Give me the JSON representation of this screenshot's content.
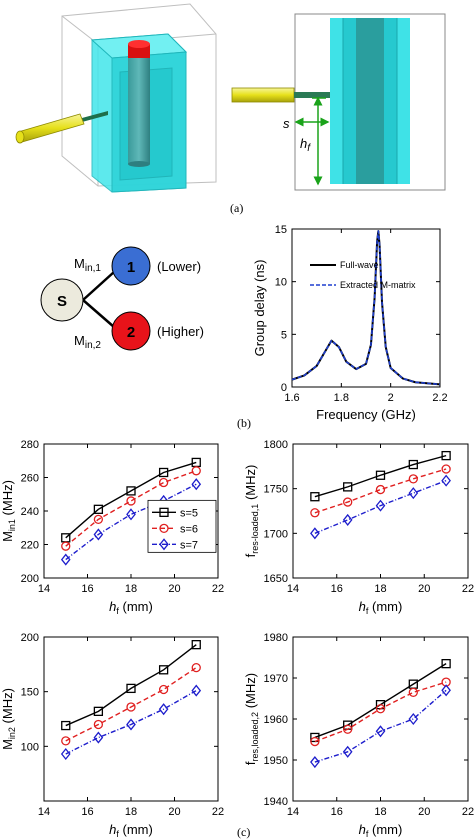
{
  "captions": {
    "a": "(a)",
    "b": "(b)",
    "c": "(c)"
  },
  "dims": {
    "s": "s",
    "hf": "h",
    "hf_sub": "f"
  },
  "diagram": {
    "source": "S",
    "node1": "1",
    "node2": "2",
    "m1_main": "M",
    "m1_sub": "in,1",
    "m2_main": "M",
    "m2_sub": "in,2",
    "lower": "(Lower)",
    "higher": "(Higher)",
    "colors": {
      "source": "#eceadd",
      "node1": "#3a6ed3",
      "node2": "#e8131a"
    }
  },
  "colors": {
    "cyan": "#33e0e6",
    "teal": "#2a8a8a",
    "red": "#e01010",
    "yellow": "#e8e812",
    "s5": "#000000",
    "s6": "#e02020",
    "s7": "#1e1ecc",
    "extracted": "#1f3fcf"
  },
  "chart_data": [
    {
      "type": "line",
      "xlabel": "Frequency (GHz)",
      "ylabel": "Group delay (ns)",
      "xlim": [
        1.6,
        2.2
      ],
      "ylim": [
        0,
        15
      ],
      "xticks": [
        "1.6",
        "1.8",
        "2",
        "2.2"
      ],
      "yticks": [
        "0",
        "5",
        "10",
        "15"
      ],
      "legend_position": "right",
      "series": [
        {
          "name": "Full-wave",
          "x": [
            1.6,
            1.65,
            1.7,
            1.73,
            1.76,
            1.79,
            1.82,
            1.86,
            1.9,
            1.92,
            1.935,
            1.945,
            1.95,
            1.955,
            1.965,
            1.98,
            2.0,
            2.05,
            2.1,
            2.2
          ],
          "y": [
            0.7,
            1.1,
            2.0,
            3.2,
            4.4,
            3.8,
            2.4,
            1.7,
            2.2,
            4.0,
            8.5,
            13.8,
            14.8,
            13.5,
            8.0,
            3.8,
            1.8,
            0.8,
            0.45,
            0.25
          ]
        },
        {
          "name": "Extracted M-matrix",
          "x": [
            1.6,
            1.65,
            1.7,
            1.73,
            1.76,
            1.79,
            1.82,
            1.86,
            1.9,
            1.92,
            1.935,
            1.945,
            1.95,
            1.955,
            1.965,
            1.98,
            2.0,
            2.05,
            2.1,
            2.2
          ],
          "y": [
            0.7,
            1.1,
            2.0,
            3.2,
            4.4,
            3.8,
            2.4,
            1.7,
            2.2,
            4.0,
            8.5,
            13.8,
            14.8,
            13.5,
            8.0,
            3.8,
            1.8,
            0.8,
            0.45,
            0.25
          ]
        }
      ]
    },
    {
      "type": "line",
      "xlabel_main": "h",
      "xlabel_sub": "f",
      "xlabel_unit": " (mm)",
      "ylabel_main": "M",
      "ylabel_sub": "in1",
      "ylabel_unit": " (MHz)",
      "xlim": [
        14,
        22
      ],
      "ylim": [
        200,
        280
      ],
      "xticks": [
        "14",
        "16",
        "18",
        "20",
        "22"
      ],
      "yticks": [
        "200",
        "220",
        "240",
        "260",
        "280"
      ],
      "legend_position": "right",
      "x": [
        15,
        16.5,
        18,
        19.5,
        21
      ],
      "series": [
        {
          "name": "s=5",
          "values": [
            224,
            241,
            252,
            263,
            269
          ]
        },
        {
          "name": "s=6",
          "values": [
            219,
            235,
            246,
            257,
            264
          ]
        },
        {
          "name": "s=7",
          "values": [
            211,
            226,
            238,
            246,
            256
          ]
        }
      ]
    },
    {
      "type": "line",
      "xlabel_main": "h",
      "xlabel_sub": "f",
      "xlabel_unit": " (mm)",
      "ylabel_main": "f",
      "ylabel_sub": "res-loaded,1",
      "ylabel_unit": " (MHz)",
      "xlim": [
        14,
        22
      ],
      "ylim": [
        1650,
        1800
      ],
      "xticks": [
        "14",
        "16",
        "18",
        "20",
        "22"
      ],
      "yticks": [
        "1650",
        "1700",
        "1750",
        "1800"
      ],
      "x": [
        15,
        16.5,
        18,
        19.5,
        21
      ],
      "series": [
        {
          "name": "s=5",
          "values": [
            1741,
            1752,
            1765,
            1777,
            1787
          ]
        },
        {
          "name": "s=6",
          "values": [
            1723,
            1735,
            1749,
            1761,
            1772
          ]
        },
        {
          "name": "s=7",
          "values": [
            1700,
            1715,
            1731,
            1745,
            1759
          ]
        }
      ]
    },
    {
      "type": "line",
      "xlabel_main": "h",
      "xlabel_sub": "f",
      "xlabel_unit": "  (mm)",
      "ylabel_main": "M",
      "ylabel_sub": "in2",
      "ylabel_unit": " (MHz)",
      "xlim": [
        14,
        22
      ],
      "ylim": [
        50,
        200
      ],
      "xticks": [
        "14",
        "16",
        "18",
        "20",
        "22"
      ],
      "yticks": [
        "100",
        "150",
        "200"
      ],
      "x": [
        15,
        16.5,
        18,
        19.5,
        21
      ],
      "series": [
        {
          "name": "s=5",
          "values": [
            119,
            132,
            153,
            170,
            193
          ]
        },
        {
          "name": "s=6",
          "values": [
            105,
            120,
            136,
            152,
            172
          ]
        },
        {
          "name": "s=7",
          "values": [
            93,
            108,
            120,
            134,
            151
          ]
        }
      ]
    },
    {
      "type": "line",
      "xlabel_main": "h",
      "xlabel_sub": "f",
      "xlabel_unit": " (mm)",
      "ylabel_main": "f",
      "ylabel_sub": "res,loaded,2",
      "ylabel_unit": " (MHz)",
      "xlim": [
        14,
        22
      ],
      "ylim": [
        1940,
        1980
      ],
      "xticks": [
        "14",
        "16",
        "18",
        "20",
        "22"
      ],
      "yticks": [
        "1940",
        "1950",
        "1960",
        "1970",
        "1980"
      ],
      "x": [
        15,
        16.5,
        18,
        19.5,
        21
      ],
      "series": [
        {
          "name": "s=5",
          "values": [
            1955.5,
            1958.5,
            1963.5,
            1968.5,
            1973.5
          ]
        },
        {
          "name": "s=6",
          "values": [
            1954.5,
            1957.5,
            1962.5,
            1966.5,
            1969
          ]
        },
        {
          "name": "s=7",
          "values": [
            1949.5,
            1952,
            1957,
            1960,
            1967
          ]
        }
      ]
    }
  ]
}
